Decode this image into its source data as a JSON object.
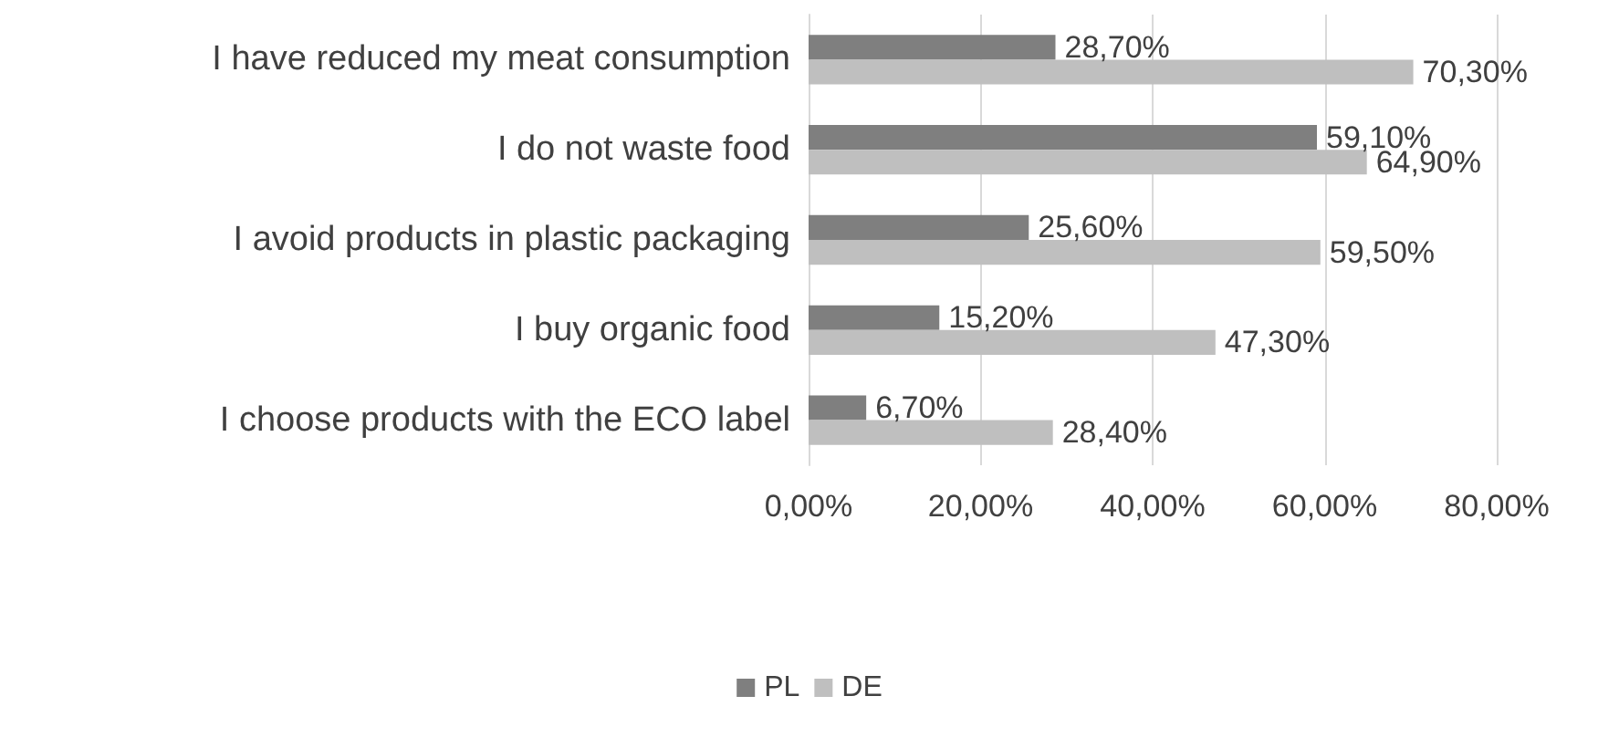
{
  "chart_data": {
    "type": "bar",
    "orientation": "horizontal",
    "categories": [
      "I have reduced my meat consumption",
      "I do not waste food",
      "I avoid products in plastic packaging",
      "I buy organic food",
      "I choose products with the ECO label"
    ],
    "series": [
      {
        "name": "PL",
        "color": "#7f7f7f",
        "values": [
          28.7,
          59.1,
          25.6,
          15.2,
          6.7
        ],
        "value_labels": [
          "28,70%",
          "59,10%",
          "25,60%",
          "15,20%",
          "6,70%"
        ]
      },
      {
        "name": "DE",
        "color": "#bfbfbf",
        "values": [
          70.3,
          64.9,
          59.5,
          47.3,
          28.4
        ],
        "value_labels": [
          "70,30%",
          "64,90%",
          "59,50%",
          "47,30%",
          "28,40%"
        ]
      }
    ],
    "xlim": [
      0,
      80
    ],
    "xticks": [
      {
        "value": 0,
        "label": "0,00%"
      },
      {
        "value": 20,
        "label": "20,00%"
      },
      {
        "value": 40,
        "label": "40,00%"
      },
      {
        "value": 60,
        "label": "60,00%"
      },
      {
        "value": 80,
        "label": "80,00%"
      }
    ],
    "grid": "x",
    "legend": "bottom"
  }
}
